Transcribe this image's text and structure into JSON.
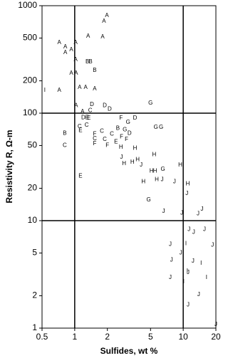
{
  "chart_data": {
    "type": "scatter",
    "xlabel": "Sulfides, wt %",
    "ylabel": "Resistivity R, Ω-m",
    "xscale": "log",
    "yscale": "log",
    "color": "#000000",
    "xlim": [
      0.5,
      20
    ],
    "ylim": [
      1,
      1000
    ],
    "xticks": [
      0.5,
      1,
      2,
      5,
      10,
      20
    ],
    "yticks": [
      1,
      2,
      5,
      10,
      20,
      50,
      100,
      200,
      500,
      1000
    ],
    "xgrid": [
      1,
      10
    ],
    "ygrid": [
      10,
      100
    ],
    "series": [
      {
        "name": "A",
        "x": [
          1.98,
          1.86,
          0.72,
          0.82,
          0.93,
          1.02,
          0.82,
          1.02,
          1.33,
          1.81,
          0.93,
          1.03,
          1.11,
          1.26,
          1.53,
          0.72,
          1.18,
          1.03
        ],
        "values": [
          808,
          715,
          453,
          413,
          388,
          453,
          366,
          314,
          519,
          511,
          235,
          235,
          173,
          173,
          168,
          163,
          103,
          118
        ]
      },
      {
        "name": "B",
        "x": [
          1.31,
          1.4,
          1.53,
          0.81,
          2.5
        ],
        "values": [
          300,
          300,
          250,
          65,
          72
        ]
      },
      {
        "name": "C",
        "x": [
          1.39,
          1.11,
          1.29,
          1.78,
          2.2,
          1.53,
          1.89,
          0.81
        ],
        "values": [
          106,
          75,
          77,
          68,
          64,
          58,
          57,
          50
        ]
      },
      {
        "name": "D",
        "x": [
          1.2,
          1.44,
          1.89,
          2.1,
          3.6,
          3.2
        ],
        "values": [
          91,
          120,
          118,
          109,
          90,
          65
        ]
      },
      {
        "name": "E",
        "x": [
          1.13,
          1.35,
          1.13,
          2.4,
          1.3
        ],
        "values": [
          69,
          90,
          26,
          54,
          91
        ]
      },
      {
        "name": "F",
        "x": [
          2.67,
          1.53,
          1.53,
          2.0,
          3.0,
          2.7
        ],
        "values": [
          90,
          52,
          64,
          50,
          57,
          60
        ]
      },
      {
        "name": "G",
        "x": [
          5.0,
          3.1,
          5.6,
          6.25,
          6.5,
          4.8,
          2.9
        ],
        "values": [
          124,
          82,
          74,
          74,
          30,
          15.6,
          70
        ]
      },
      {
        "name": "H",
        "x": [
          2.67,
          3.6,
          5.4,
          2.85,
          3.4,
          3.8,
          5.1,
          5.5,
          4.3,
          9.4,
          11,
          5.7
        ],
        "values": [
          48,
          47,
          41,
          34,
          35,
          37,
          29,
          29,
          23,
          33,
          22,
          24
        ]
      },
      {
        "name": "I",
        "x": [
          0.53,
          10.6,
          10.9,
          14.6,
          16.4,
          10.1
        ],
        "values": [
          163,
          6.1,
          3.4,
          4.0,
          2.95,
          2.7
        ]
      },
      {
        "name": "J",
        "x": [
          2.7,
          4.1,
          6.4,
          6.6,
          9.7,
          14.9,
          13.7,
          7.6,
          7.8,
          7.6,
          11.3,
          12.5,
          15.7,
          9.5,
          12.3,
          11.1,
          13.9,
          11.1,
          18.6,
          20,
          10.8,
          8.3
        ],
        "values": [
          39,
          33,
          24,
          12.2,
          11.8,
          12.8,
          11.6,
          6.0,
          4.3,
          2.95,
          8.3,
          7.8,
          8.3,
          5.0,
          4.2,
          3.3,
          2.05,
          1.65,
          5.9,
          1.08,
          17.9,
          23
        ]
      }
    ]
  }
}
